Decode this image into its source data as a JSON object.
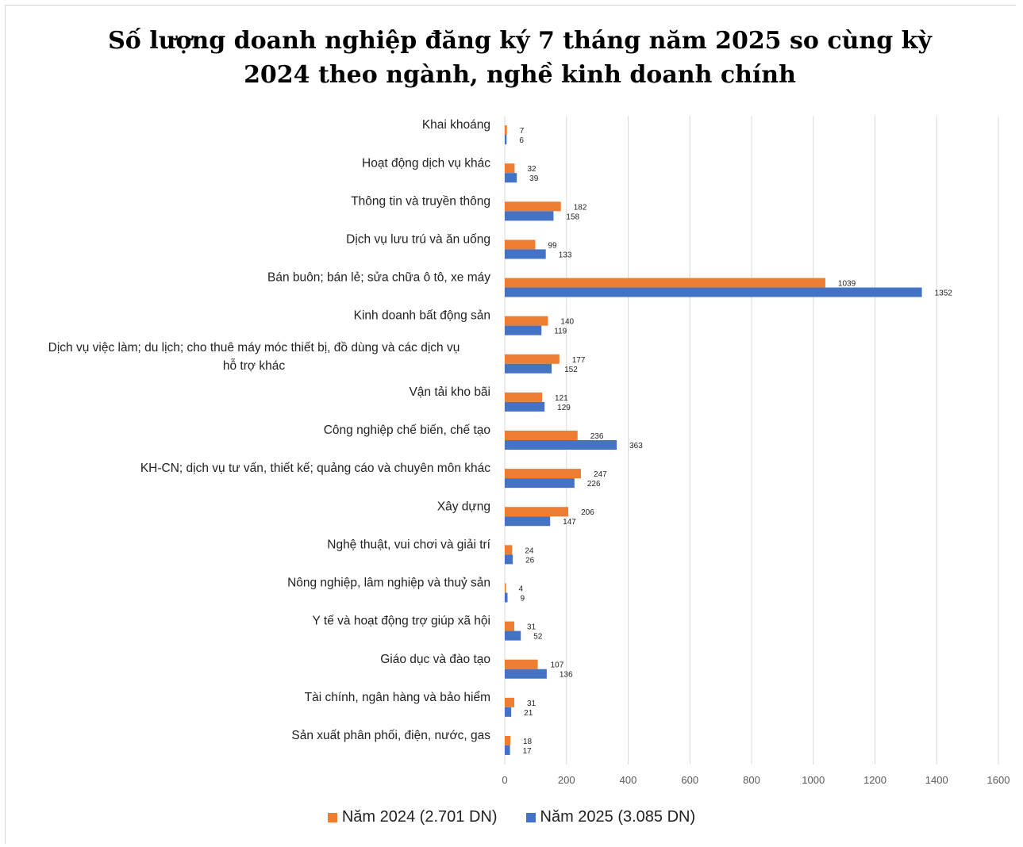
{
  "chart_data": {
    "type": "bar",
    "orientation": "horizontal",
    "title": "Số lượng doanh nghiệp đăng ký 7 tháng năm 2025 so cùng kỳ 2024 theo ngành, nghề kinh doanh chính",
    "categories": [
      "Khai khoáng",
      "Hoạt động dịch vụ khác",
      "Thông tin và truyền thông",
      "Dịch vụ lưu trú và ăn uống",
      "Bán buôn; bán lẻ; sửa chữa ô tô, xe máy",
      "Kinh doanh bất động sản",
      "Dịch vụ việc làm; du lịch; cho thuê máy móc thiết bị, đồ dùng và các dịch vụ hỗ trợ khác",
      "Vận tải kho bãi",
      "Công nghiệp chế biến, chế tạo",
      "KH-CN; dịch vụ tư vấn, thiết kế; quảng cáo và chuyên môn khác",
      "Xây dựng",
      "Nghệ thuật, vui chơi và giải trí",
      "Nông nghiệp, lâm nghiệp và thuỷ sản",
      "Y tế và hoạt động trợ giúp xã hội",
      "Giáo dục và đào tạo",
      "Tài chính, ngân hàng và bảo hiểm",
      "Sản xuất phân phối, điện, nước, gas"
    ],
    "series": [
      {
        "name": "Năm 2024 (2.701 DN)",
        "color": "#ED7D31",
        "values": [
          7,
          32,
          182,
          99,
          1039,
          140,
          177,
          121,
          236,
          247,
          206,
          24,
          4,
          31,
          107,
          31,
          18
        ]
      },
      {
        "name": "Năm 2025 (3.085 DN)",
        "color": "#4472C4",
        "values": [
          6,
          39,
          158,
          133,
          1352,
          119,
          152,
          129,
          363,
          226,
          147,
          26,
          9,
          52,
          136,
          21,
          17
        ]
      }
    ],
    "xlim": [
      0,
      1600
    ],
    "xticks": [
      0,
      200,
      400,
      600,
      800,
      1000,
      1200,
      1400,
      1600
    ],
    "grid": true,
    "legend_position": "bottom"
  }
}
